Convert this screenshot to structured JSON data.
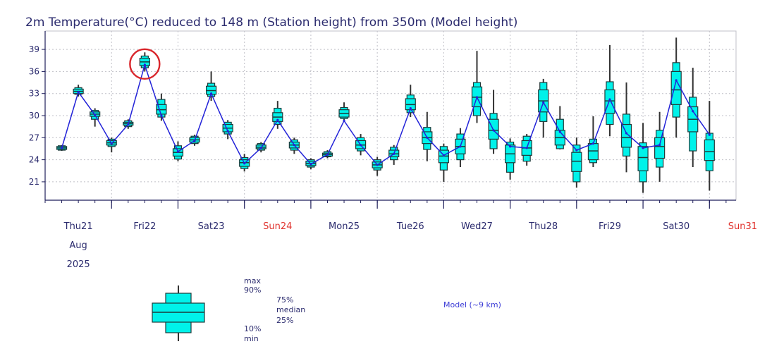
{
  "chart_data": {
    "type": "boxplot-ensemble",
    "title": "2m Temperature(°C) reduced to 148 m (Station height) from 350m (Model height)",
    "ylabel": "",
    "ylim": [
      18.5,
      41.5
    ],
    "yticks": [
      21,
      24,
      27,
      30,
      33,
      36,
      39
    ],
    "xlim": [
      20.5,
      30.9
    ],
    "x_tick_days": [
      {
        "x": 21,
        "label": "Thu21",
        "weekend": false
      },
      {
        "x": 22,
        "label": "Fri22",
        "weekend": false
      },
      {
        "x": 23,
        "label": "Sat23",
        "weekend": false
      },
      {
        "x": 24,
        "label": "Sun24",
        "weekend": true
      },
      {
        "x": 25,
        "label": "Mon25",
        "weekend": false
      },
      {
        "x": 26,
        "label": "Tue26",
        "weekend": false
      },
      {
        "x": 27,
        "label": "Wed27",
        "weekend": false
      },
      {
        "x": 28,
        "label": "Thu28",
        "weekend": false
      },
      {
        "x": 29,
        "label": "Fri29",
        "weekend": false
      },
      {
        "x": 30,
        "label": "Sat30",
        "weekend": false
      },
      {
        "x": 31,
        "label": "Sun31",
        "weekend": true
      }
    ],
    "date_extra": {
      "month": "Aug",
      "year": "2025"
    },
    "series": [
      {
        "name": "Ensemble temperature boxes",
        "points": [
          {
            "t": 20.75,
            "min": 25.2,
            "p10": 25.3,
            "p25": 25.4,
            "median": 25.6,
            "p75": 25.8,
            "p90": 25.9,
            "max": 26.0
          },
          {
            "t": 21.0,
            "min": 32.6,
            "p10": 32.9,
            "p25": 33.0,
            "median": 33.3,
            "p75": 33.6,
            "p90": 33.8,
            "max": 34.2
          },
          {
            "t": 21.25,
            "min": 28.5,
            "p10": 29.5,
            "p25": 29.9,
            "median": 30.2,
            "p75": 30.5,
            "p90": 30.7,
            "max": 31.0
          },
          {
            "t": 21.5,
            "min": 25.0,
            "p10": 25.8,
            "p25": 26.0,
            "median": 26.3,
            "p75": 26.6,
            "p90": 26.8,
            "max": 27.0
          },
          {
            "t": 21.75,
            "min": 28.2,
            "p10": 28.5,
            "p25": 28.7,
            "median": 28.9,
            "p75": 29.1,
            "p90": 29.3,
            "max": 29.5
          },
          {
            "t": 22.0,
            "min": 36.0,
            "p10": 36.5,
            "p25": 36.8,
            "median": 37.3,
            "p75": 37.8,
            "p90": 38.1,
            "max": 38.6
          },
          {
            "t": 22.25,
            "min": 29.3,
            "p10": 29.8,
            "p25": 30.2,
            "median": 30.8,
            "p75": 31.5,
            "p90": 32.2,
            "max": 33.0
          },
          {
            "t": 22.5,
            "min": 23.8,
            "p10": 24.1,
            "p25": 24.5,
            "median": 25.0,
            "p75": 25.5,
            "p90": 25.9,
            "max": 26.5
          },
          {
            "t": 22.75,
            "min": 25.9,
            "p10": 26.2,
            "p25": 26.4,
            "median": 26.7,
            "p75": 27.0,
            "p90": 27.2,
            "max": 27.4
          },
          {
            "t": 23.0,
            "min": 32.0,
            "p10": 32.6,
            "p25": 32.9,
            "median": 33.4,
            "p75": 34.0,
            "p90": 34.4,
            "max": 36.0
          },
          {
            "t": 23.25,
            "min": 26.8,
            "p10": 27.5,
            "p25": 27.8,
            "median": 28.3,
            "p75": 28.8,
            "p90": 29.1,
            "max": 29.4
          },
          {
            "t": 23.5,
            "min": 22.4,
            "p10": 22.8,
            "p25": 23.1,
            "median": 23.6,
            "p75": 24.0,
            "p90": 24.3,
            "max": 24.8
          },
          {
            "t": 23.75,
            "min": 25.0,
            "p10": 25.3,
            "p25": 25.5,
            "median": 25.7,
            "p75": 26.0,
            "p90": 26.2,
            "max": 26.4
          },
          {
            "t": 24.0,
            "min": 28.2,
            "p10": 28.8,
            "p25": 29.2,
            "median": 29.8,
            "p75": 30.4,
            "p90": 31.0,
            "max": 32.0
          },
          {
            "t": 24.25,
            "min": 24.8,
            "p10": 25.3,
            "p25": 25.6,
            "median": 26.0,
            "p75": 26.4,
            "p90": 26.7,
            "max": 27.0
          },
          {
            "t": 24.5,
            "min": 22.7,
            "p10": 23.0,
            "p25": 23.2,
            "median": 23.5,
            "p75": 23.8,
            "p90": 24.0,
            "max": 24.2
          },
          {
            "t": 24.75,
            "min": 24.2,
            "p10": 24.4,
            "p25": 24.5,
            "median": 24.7,
            "p75": 24.9,
            "p90": 25.1,
            "max": 25.3
          },
          {
            "t": 25.0,
            "min": 29.2,
            "p10": 29.6,
            "p25": 29.8,
            "median": 30.3,
            "p75": 30.8,
            "p90": 31.1,
            "max": 31.8
          },
          {
            "t": 25.25,
            "min": 24.6,
            "p10": 25.2,
            "p25": 25.5,
            "median": 26.0,
            "p75": 26.6,
            "p90": 27.0,
            "max": 27.5
          },
          {
            "t": 25.5,
            "min": 21.8,
            "p10": 22.6,
            "p25": 22.9,
            "median": 23.3,
            "p75": 23.7,
            "p90": 24.0,
            "max": 24.4
          },
          {
            "t": 25.75,
            "min": 23.3,
            "p10": 24.0,
            "p25": 24.4,
            "median": 24.8,
            "p75": 25.3,
            "p90": 25.7,
            "max": 26.0
          },
          {
            "t": 26.0,
            "min": 29.8,
            "p10": 30.4,
            "p25": 30.8,
            "median": 31.5,
            "p75": 32.3,
            "p90": 32.8,
            "max": 34.2
          },
          {
            "t": 26.25,
            "min": 23.8,
            "p10": 25.4,
            "p25": 26.2,
            "median": 27.0,
            "p75": 27.8,
            "p90": 28.4,
            "max": 30.5
          },
          {
            "t": 26.5,
            "min": 21.0,
            "p10": 22.6,
            "p25": 23.6,
            "median": 24.5,
            "p75": 25.3,
            "p90": 25.8,
            "max": 26.2
          },
          {
            "t": 26.75,
            "min": 23.0,
            "p10": 24.0,
            "p25": 24.8,
            "median": 25.8,
            "p75": 26.8,
            "p90": 27.5,
            "max": 28.3
          },
          {
            "t": 27.0,
            "min": 29.0,
            "p10": 30.0,
            "p25": 31.2,
            "median": 32.5,
            "p75": 33.9,
            "p90": 34.5,
            "max": 38.8
          },
          {
            "t": 27.25,
            "min": 24.8,
            "p10": 25.5,
            "p25": 26.8,
            "median": 28.0,
            "p75": 29.5,
            "p90": 30.3,
            "max": 33.5
          },
          {
            "t": 27.5,
            "min": 21.3,
            "p10": 22.3,
            "p25": 23.6,
            "median": 24.8,
            "p75": 26.0,
            "p90": 26.4,
            "max": 26.9
          },
          {
            "t": 27.75,
            "min": 23.2,
            "p10": 23.8,
            "p25": 24.6,
            "median": 25.6,
            "p75": 26.6,
            "p90": 27.2,
            "max": 27.5
          },
          {
            "t": 28.0,
            "min": 27.0,
            "p10": 29.2,
            "p25": 30.5,
            "median": 32.0,
            "p75": 33.5,
            "p90": 34.5,
            "max": 35.0
          },
          {
            "t": 28.25,
            "min": 25.4,
            "p10": 25.5,
            "p25": 26.0,
            "median": 27.0,
            "p75": 28.0,
            "p90": 29.5,
            "max": 31.3
          },
          {
            "t": 28.5,
            "min": 20.2,
            "p10": 21.0,
            "p25": 22.4,
            "median": 23.8,
            "p75": 25.0,
            "p90": 26.0,
            "max": 27.0
          },
          {
            "t": 28.75,
            "min": 23.0,
            "p10": 23.6,
            "p25": 24.0,
            "median": 25.2,
            "p75": 26.2,
            "p90": 26.8,
            "max": 29.9
          },
          {
            "t": 29.0,
            "min": 27.2,
            "p10": 28.8,
            "p25": 30.3,
            "median": 32.0,
            "p75": 33.5,
            "p90": 34.6,
            "max": 39.6
          },
          {
            "t": 29.25,
            "min": 22.3,
            "p10": 24.5,
            "p25": 25.7,
            "median": 27.0,
            "p75": 28.8,
            "p90": 30.2,
            "max": 34.5
          },
          {
            "t": 29.5,
            "min": 19.5,
            "p10": 21.0,
            "p25": 22.5,
            "median": 24.3,
            "p75": 25.8,
            "p90": 26.3,
            "max": 29.0
          },
          {
            "t": 29.75,
            "min": 21.0,
            "p10": 23.0,
            "p25": 24.2,
            "median": 25.8,
            "p75": 27.0,
            "p90": 28.0,
            "max": 30.5
          },
          {
            "t": 30.0,
            "min": 27.0,
            "p10": 29.8,
            "p25": 31.5,
            "median": 33.5,
            "p75": 36.0,
            "p90": 37.2,
            "max": 40.6
          },
          {
            "t": 30.25,
            "min": 23.0,
            "p10": 25.2,
            "p25": 27.8,
            "median": 29.5,
            "p75": 31.2,
            "p90": 32.5,
            "max": 36.5
          },
          {
            "t": 30.5,
            "min": 19.8,
            "p10": 22.5,
            "p25": 23.9,
            "median": 25.1,
            "p75": 26.7,
            "p90": 27.6,
            "max": 32.0
          }
        ]
      },
      {
        "name": "Model (~9 km)",
        "color": "#2323d8",
        "x": [
          20.75,
          21.0,
          21.25,
          21.5,
          21.75,
          22.0,
          22.25,
          22.5,
          22.75,
          23.0,
          23.25,
          23.5,
          23.75,
          24.0,
          24.25,
          24.5,
          24.75,
          25.0,
          25.25,
          25.5,
          25.75,
          26.0,
          26.25,
          26.5,
          26.75,
          27.0,
          27.25,
          27.5,
          27.75,
          28.0,
          28.25,
          28.5,
          28.75,
          29.0,
          29.25,
          29.5,
          29.75,
          30.0,
          30.25,
          30.5
        ],
        "values": [
          25.6,
          33.2,
          30.1,
          26.2,
          28.8,
          36.9,
          30.0,
          25.1,
          26.6,
          33.0,
          27.9,
          23.5,
          25.6,
          29.4,
          26.0,
          23.4,
          24.7,
          29.3,
          26.0,
          23.3,
          24.8,
          31.0,
          27.0,
          24.6,
          25.8,
          32.5,
          28.0,
          25.8,
          25.6,
          31.8,
          27.8,
          25.3,
          26.2,
          32.2,
          27.6,
          25.6,
          26.0,
          34.8,
          30.6,
          27.4
        ]
      }
    ],
    "annotations": [
      {
        "type": "circle",
        "x": 22.0,
        "y": 37.3,
        "color": "#d9262b",
        "note": "highlighted maximum"
      }
    ],
    "legend": {
      "box_labels": {
        "max": "max",
        "p90": "90%",
        "p75": "75%",
        "median": "median",
        "p25": "25%",
        "p10": "10%",
        "min": "min"
      },
      "model_label": "Model (~9 km)"
    },
    "colors": {
      "box_fill": "#00f2ea",
      "box_stroke": "#1e3a3a",
      "whisker": "#333333",
      "model_line": "#2323d8",
      "axis": "#1e1e5a",
      "grid": "#c0c0c8",
      "weekend_label": "#e0322d",
      "text": "#2b2b6e",
      "circle": "#d9262b"
    }
  }
}
